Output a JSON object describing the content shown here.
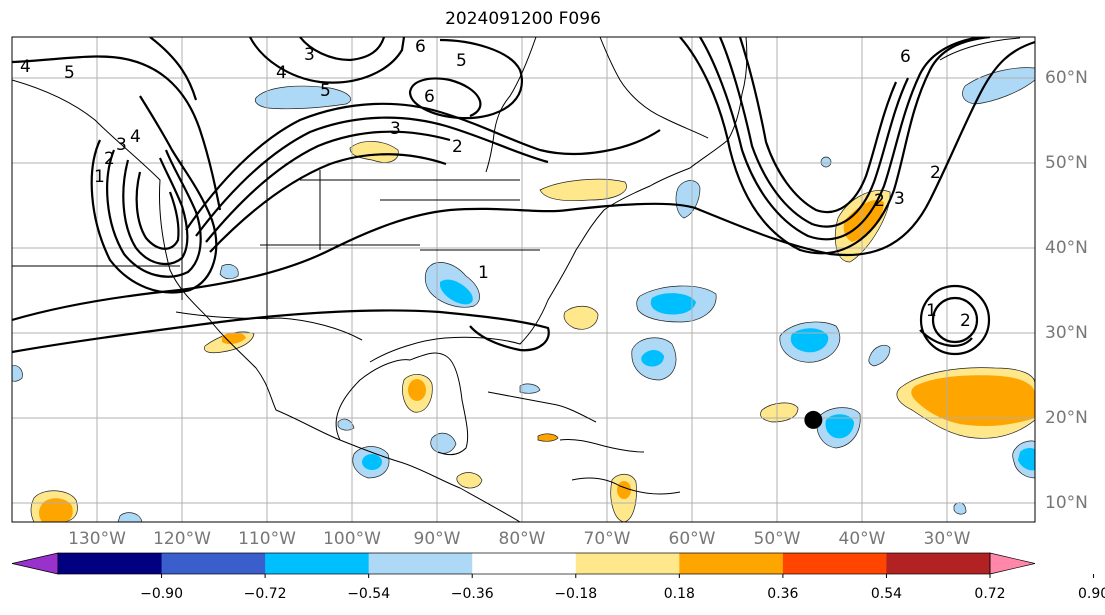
{
  "title": "2024091200 F096",
  "map": {
    "projection": "PlateCarree",
    "extent_lon": [
      -140,
      -20
    ],
    "extent_lat": [
      8,
      65
    ],
    "gridlines": true,
    "lon_labels": [
      "130°W",
      "120°W",
      "110°W",
      "100°W",
      "90°W",
      "80°W",
      "70°W",
      "60°W",
      "50°W",
      "40°W",
      "30°W"
    ],
    "lat_labels": [
      "60°N",
      "50°N",
      "40°N",
      "30°N",
      "20°N",
      "10°N"
    ],
    "contour_labels": [
      "3",
      "4",
      "5",
      "6",
      "5",
      "4",
      "6",
      "3",
      "2",
      "1",
      "1",
      "2",
      "3",
      "4",
      "5",
      "6",
      "2",
      "3",
      "2",
      "1",
      "2"
    ],
    "marker": {
      "type": "filled-circle",
      "color": "#000000",
      "lon": -46,
      "lat": 20
    }
  },
  "colorbar": {
    "ticks": [
      "−0.90",
      "−0.72",
      "−0.54",
      "−0.36",
      "−0.18",
      "0.18",
      "0.36",
      "0.54",
      "0.72",
      "0.90"
    ],
    "colors": [
      "#9932cc",
      "#000080",
      "#3a5fcd",
      "#00bfff",
      "#add8f6",
      "#ffffff",
      "#ffe78c",
      "#ffa500",
      "#ff4500",
      "#b22222",
      "#ff88aa"
    ],
    "extend": "both"
  },
  "colors": {
    "neg_light": "#add8f6",
    "neg_mid": "#00bfff",
    "pos_light": "#ffe78c",
    "pos_mid": "#ffa500",
    "grid": "#b0b0b0"
  }
}
